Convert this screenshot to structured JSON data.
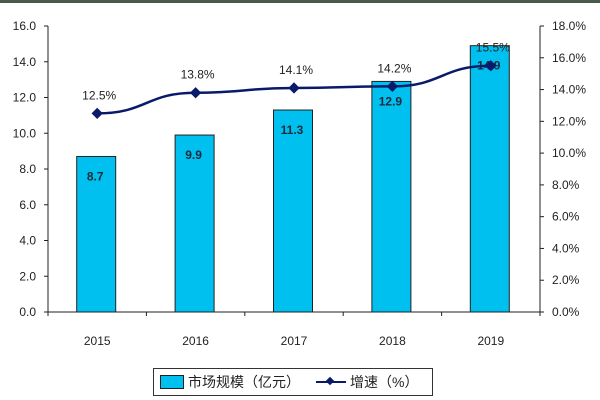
{
  "chart_data": {
    "type": "bar",
    "categories": [
      "2015",
      "2016",
      "2017",
      "2018",
      "2019"
    ],
    "series": [
      {
        "name": "市场规模（亿元）",
        "type": "bar",
        "axis": "left",
        "values": [
          8.7,
          9.9,
          11.3,
          12.9,
          14.9
        ],
        "labels": [
          "8.7",
          "9.9",
          "11.3",
          "12.9",
          "14.9"
        ],
        "color": "#00c0f0"
      },
      {
        "name": "增速（%）",
        "type": "line",
        "axis": "right",
        "values": [
          12.5,
          13.8,
          14.1,
          14.2,
          15.5
        ],
        "labels": [
          "12.5%",
          "13.8%",
          "14.1%",
          "14.2%",
          "15.5%"
        ],
        "color": "#0a1a6a"
      }
    ],
    "y_left": {
      "range": [
        0,
        16
      ],
      "ticks": [
        "0.0",
        "2.0",
        "4.0",
        "6.0",
        "8.0",
        "10.0",
        "12.0",
        "14.0",
        "16.0"
      ]
    },
    "y_right": {
      "range": [
        0,
        18
      ],
      "ticks": [
        "0.0%",
        "2.0%",
        "4.0%",
        "6.0%",
        "8.0%",
        "10.0%",
        "12.0%",
        "14.0%",
        "16.0%",
        "18.0%"
      ]
    },
    "legend": {
      "position": "bottom",
      "entries": [
        "市场规模（亿元）",
        "增速（%）"
      ]
    },
    "grid": false
  }
}
